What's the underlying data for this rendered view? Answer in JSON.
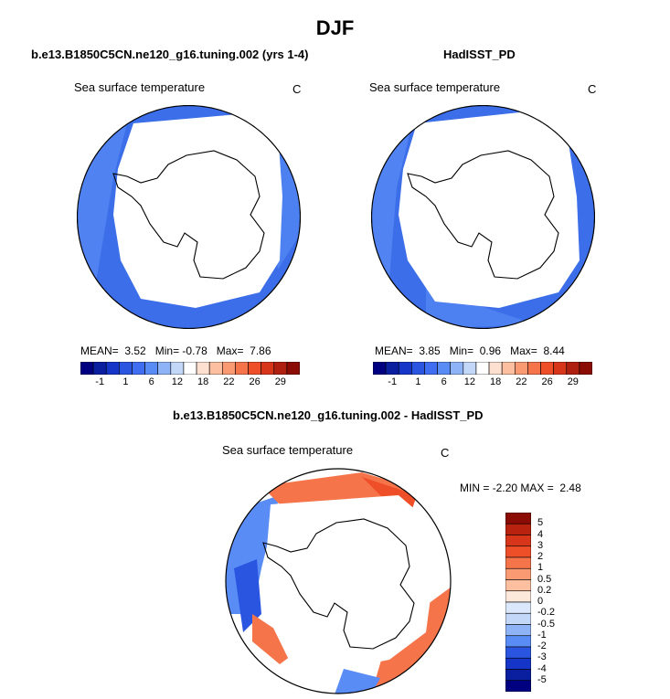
{
  "main_title": "DJF",
  "left_panel": {
    "title": "b.e13.B1850C5CN.ne120_g16.tuning.002 (yrs 1-4)",
    "variable": "Sea surface temperature",
    "units": "C",
    "stats": {
      "mean_label": "MEAN=",
      "mean": "3.52",
      "min_label": "Min=",
      "min": "-0.78",
      "max_label": "Max=",
      "max": "7.86"
    }
  },
  "right_panel": {
    "title": "HadISST_PD",
    "variable": "Sea surface temperature",
    "units": "C",
    "stats": {
      "mean_label": "MEAN=",
      "mean": "3.85",
      "min_label": "Min=",
      "min": "0.96",
      "max_label": "Max=",
      "max": "8.44"
    }
  },
  "diff_panel": {
    "title": "b.e13.B1850C5CN.ne120_g16.tuning.002 - HadISST_PD",
    "variable": "Sea surface temperature",
    "units": "C",
    "stats": {
      "min_label": "MIN =",
      "min": "-2.20",
      "max_label": "MAX =",
      "max": "2.48"
    }
  },
  "top_colorbar": {
    "labels": [
      "-1",
      "1",
      "6",
      "12",
      "18",
      "22",
      "26",
      "29"
    ],
    "colors": [
      "#000080",
      "#0a1fa0",
      "#1535c8",
      "#2a55e0",
      "#3f6ff0",
      "#5a8cf5",
      "#8fb3f7",
      "#c3d7f9",
      "#ffffff",
      "#fde0d0",
      "#fcbfa0",
      "#f99a72",
      "#f5744a",
      "#ef4f28",
      "#d8361a",
      "#b02010",
      "#8a0c04"
    ]
  },
  "diff_colorbar": {
    "labels": [
      "5",
      "4",
      "3",
      "2",
      "1",
      "0.5",
      "0.2",
      "0",
      "-0.2",
      "-0.5",
      "-1",
      "-2",
      "-3",
      "-4",
      "-5"
    ],
    "colors": [
      "#8a0c04",
      "#b8220e",
      "#d8361a",
      "#ef4f28",
      "#f5744a",
      "#f99a72",
      "#fcbfa0",
      "#fde9dc",
      "#dbe7fb",
      "#c3d7f9",
      "#8fb3f7",
      "#5a8cf5",
      "#2a55e0",
      "#1535c8",
      "#0a1fa0",
      "#000080"
    ]
  }
}
